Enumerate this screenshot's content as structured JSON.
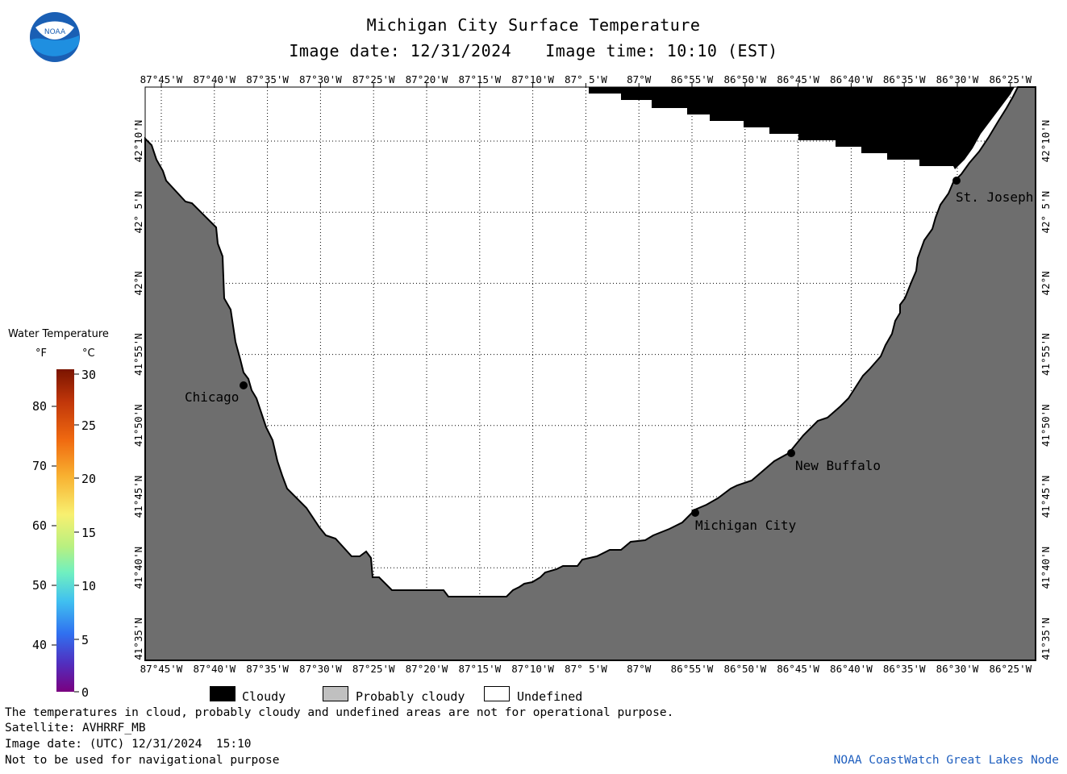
{
  "header": {
    "title": "Michigan City Surface Temperature",
    "image_date": "Image date: 12/31/2024",
    "image_time": "Image time: 10:10 (EST)"
  },
  "logo": {
    "text": "NOAA",
    "icon": "noaa-logo-icon"
  },
  "map": {
    "lon_labels": [
      "87°45'W",
      "87°40'W",
      "87°35'W",
      "87°30'W",
      "87°25'W",
      "87°20'W",
      "87°15'W",
      "87°10'W",
      "87° 5'W",
      "87°W",
      "86°55'W",
      "86°50'W",
      "86°45'W",
      "86°40'W",
      "86°35'W",
      "86°30'W",
      "86°25'W"
    ],
    "lat_labels": [
      "42°10'N",
      "42° 5'N",
      "42°N",
      "41°55'N",
      "41°50'N",
      "41°45'N",
      "41°40'N",
      "41°35'N"
    ],
    "cities": [
      {
        "name": "Chicago"
      },
      {
        "name": "St. Joseph"
      },
      {
        "name": "New Buffalo"
      },
      {
        "name": "Michigan City"
      }
    ],
    "colors": {
      "land": "#6e6e6e",
      "cloudy": "#000000",
      "water_undefined": "#ffffff",
      "grid": "#000000"
    }
  },
  "legend": {
    "title": "Water Temperature",
    "unit_f": "°F",
    "unit_c": "°C",
    "f_ticks": [
      "80",
      "70",
      "60",
      "50",
      "40"
    ],
    "c_ticks": [
      "30",
      "25",
      "20",
      "15",
      "10",
      "5",
      "0"
    ]
  },
  "key": {
    "cloudy": "Cloudy",
    "probably_cloudy": "Probably cloudy",
    "undefined": "Undefined",
    "colors": {
      "cloudy": "#000000",
      "probably_cloudy": "#c0c0c0",
      "undefined": "#ffffff"
    }
  },
  "footer": {
    "note": "The temperatures in cloud, probably cloudy and undefined areas are not for operational purpose.",
    "satellite": "Satellite: AVHRRF_MB",
    "image_date_utc": "Image date: (UTC) 12/31/2024  15:10",
    "nav_warning": "Not to be used for navigational purpose",
    "credit": "NOAA CoastWatch Great Lakes Node"
  }
}
